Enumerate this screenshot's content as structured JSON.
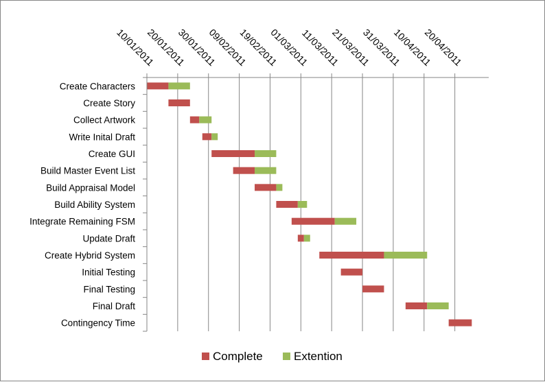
{
  "chart_data": {
    "type": "bar",
    "subtype": "gantt-stacked-horizontal",
    "title": "",
    "xlabel": "",
    "ylabel": "",
    "x_axis_position": "top",
    "x_ticks": [
      "10/01/2011",
      "20/01/2011",
      "30/01/2011",
      "09/02/2011",
      "19/02/2011",
      "01/03/2011",
      "11/03/2011",
      "21/03/2011",
      "31/03/2011",
      "10/04/2011",
      "20/04/2011"
    ],
    "xlim": [
      "10/01/2011",
      "01/05/2011"
    ],
    "grid": "vertical",
    "legend_position": "bottom",
    "categories": [
      "Create Characters",
      "Create Story",
      "Collect Artwork",
      "Write Inital Draft",
      "Create GUI",
      "Build Master Event List",
      "Build Appraisal Model",
      "Build Ability System",
      "Integrate Remaining FSM",
      "Update Draft",
      "Create Hybrid System",
      "Initial Testing",
      "Final Testing",
      "Final Draft",
      "Contingency Time"
    ],
    "start_dates": [
      "10/01/2011",
      "17/01/2011",
      "24/01/2011",
      "28/01/2011",
      "31/01/2011",
      "07/02/2011",
      "14/02/2011",
      "21/02/2011",
      "26/02/2011",
      "28/02/2011",
      "07/03/2011",
      "14/03/2011",
      "21/03/2011",
      "04/04/2011",
      "18/04/2011"
    ],
    "series": [
      {
        "name": "Complete",
        "color": "#c0504d",
        "durations_days": [
          7,
          7,
          3,
          3,
          14,
          7,
          7,
          7,
          14,
          2,
          21,
          7,
          7,
          7,
          7.5
        ]
      },
      {
        "name": "Extention",
        "color": "#9bbb59",
        "durations_days": [
          7,
          0,
          4,
          2,
          7,
          7,
          2,
          3,
          7,
          2,
          14,
          0,
          0,
          7,
          0
        ]
      }
    ]
  }
}
